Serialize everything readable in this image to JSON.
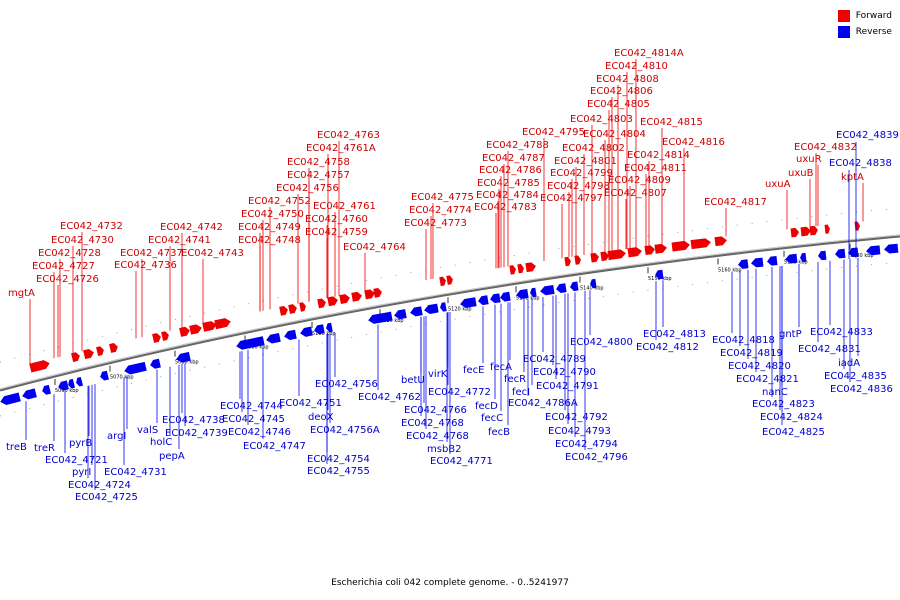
{
  "caption": "Escherichia coli 042 complete genome. - 0..5241977",
  "legend": {
    "items": [
      {
        "label": "Forward",
        "color": "#ee0000"
      },
      {
        "label": "Reverse",
        "color": "#0000ee"
      }
    ]
  },
  "colors": {
    "forward": "#ee0000",
    "reverse": "#0000ee",
    "backbone": "#666666"
  },
  "ticks": [
    "5060 kbp",
    "5070 kbp",
    "5080 kbp",
    "5090 kbp",
    "5100 kbp",
    "5110 kbp",
    "5120 kbp",
    "5130 kbp",
    "5140 kbp",
    "5150 kbp",
    "5160 kbp",
    "5170 kbp",
    "5180 kbp"
  ],
  "forward_labels": [
    "mgtA",
    "EC042_4726",
    "EC042_4727",
    "EC042_4728",
    "EC042_4730",
    "EC042_4732",
    "EC042_4736",
    "EC042_4737",
    "EC042_4741",
    "EC042_4742",
    "EC042_4743",
    "EC042_4748",
    "EC042_4749",
    "EC042_4750",
    "EC042_4752",
    "EC042_4756",
    "EC042_4757",
    "EC042_4758",
    "EC042_4759",
    "EC042_4760",
    "EC042_4761",
    "EC042_4761A",
    "EC042_4763",
    "EC042_4764",
    "EC042_4773",
    "EC042_4774",
    "EC042_4775",
    "EC042_4783",
    "EC042_4784",
    "EC042_4785",
    "EC042_4786",
    "EC042_4787",
    "EC042_4788",
    "EC042_4795",
    "EC042_4797",
    "EC042_4798",
    "EC042_4799",
    "EC042_4801",
    "EC042_4802",
    "EC042_4803",
    "EC042_4804",
    "EC042_4805",
    "EC042_4806",
    "EC042_4807",
    "EC042_4808",
    "EC042_4809",
    "EC042_4810",
    "EC042_4811",
    "EC042_4814",
    "EC042_4814A",
    "EC042_4815",
    "EC042_4816",
    "EC042_4817",
    "uxuA",
    "uxuB",
    "uxuR",
    "EC042_4832",
    "kptA"
  ],
  "reverse_labels": [
    "treB",
    "treR",
    "pyrB",
    "EC042_4721",
    "pyrI",
    "EC042_4724",
    "EC042_4725",
    "argI",
    "EC042_4731",
    "valS",
    "holC",
    "pepA",
    "EC042_4738",
    "EC042_4739",
    "EC042_4744",
    "EC042_4745",
    "EC042_4746",
    "EC042_4747",
    "EC042_4751",
    "deoX",
    "EC042_4754",
    "EC042_4755",
    "EC042_4756",
    "EC042_4756A",
    "EC042_4762",
    "betU",
    "EC042_4766",
    "EC042_4768",
    "msbB2",
    "EC042_4768",
    "virK",
    "EC042_4772",
    "EC042_4771",
    "fecE",
    "fecD",
    "fecC",
    "fecB",
    "fecA",
    "fecR",
    "fecI",
    "EC042_4786A",
    "EC042_4789",
    "EC042_4790",
    "EC042_4791",
    "EC042_4792",
    "EC042_4793",
    "EC042_4794",
    "EC042_4796",
    "EC042_4800",
    "EC042_4812",
    "EC042_4813",
    "EC042_4818",
    "EC042_4819",
    "EC042_4820",
    "EC042_4821",
    "nanC",
    "EC042_4823",
    "EC042_4824",
    "EC042_4825",
    "gntP",
    "EC042_4831",
    "EC042_4833",
    "iadA",
    "EC042_4835",
    "EC042_4836",
    "EC042_4838",
    "EC042_4839"
  ]
}
